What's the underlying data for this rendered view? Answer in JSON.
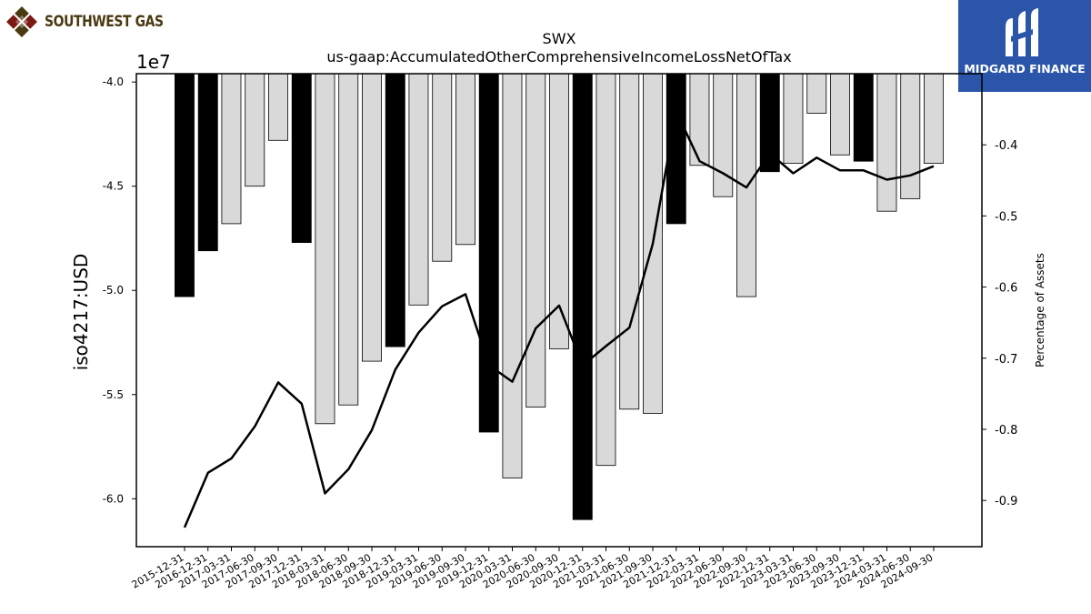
{
  "logos": {
    "left_text": "SOUTHWEST GAS",
    "right_text": "MIDGARD FINANCE",
    "left_icon": "diamond-grid-icon",
    "right_icon": "midgard-m-icon",
    "right_bg_color": "#2a55a8",
    "left_colors": [
      "#7a1a12",
      "#4a3a12"
    ]
  },
  "chart_data": {
    "type": "bar",
    "title": "SWX",
    "subtitle": "us-gaap:AccumulatedOtherComprehensiveIncomeLossNetOfTax",
    "ylabel": "iso4217:USD",
    "y_offset_label": "1e7",
    "y2label": "Percentage of Assets",
    "ylim": [
      -6.23,
      -3.96
    ],
    "y2lim": [
      -0.965,
      -0.3
    ],
    "yticks": [
      "-4.0",
      "-4.5",
      "-5.0",
      "-5.5",
      "-6.0"
    ],
    "y2ticks": [
      "-0.4",
      "-0.5",
      "-0.6",
      "-0.7",
      "-0.8",
      "-0.9"
    ],
    "grid": false,
    "categories": [
      "2015-12-31",
      "2016-12-31",
      "2017-03-31",
      "2017-06-30",
      "2017-09-30",
      "2017-12-31",
      "2018-03-31",
      "2018-06-30",
      "2018-09-30",
      "2018-12-31",
      "2019-03-31",
      "2019-06-30",
      "2019-09-30",
      "2019-12-31",
      "2020-03-31",
      "2020-06-30",
      "2020-09-30",
      "2020-12-31",
      "2021-03-31",
      "2021-06-30",
      "2021-09-30",
      "2021-12-31",
      "2022-03-31",
      "2022-06-30",
      "2022-09-30",
      "2022-12-31",
      "2023-03-31",
      "2023-06-30",
      "2023-09-30",
      "2023-12-31",
      "2024-03-31",
      "2024-06-30",
      "2024-09-30"
    ],
    "series": [
      {
        "kind": "bar",
        "values": [
          -5.03,
          -4.81,
          -4.68,
          -4.5,
          -4.28,
          -4.77,
          -5.64,
          -5.55,
          -5.34,
          -5.27,
          -5.07,
          -4.86,
          -4.78,
          -5.68,
          -5.9,
          -5.56,
          -5.28,
          -6.1,
          -5.84,
          -5.57,
          -5.59,
          -4.68,
          -4.4,
          -4.55,
          -5.03,
          -4.43,
          -4.39,
          -4.15,
          -4.35,
          -4.38,
          -4.62,
          -4.56,
          -4.39
        ],
        "annual": [
          true,
          true,
          false,
          false,
          false,
          true,
          false,
          false,
          false,
          true,
          false,
          false,
          false,
          true,
          false,
          false,
          false,
          true,
          false,
          false,
          false,
          true,
          false,
          false,
          false,
          true,
          false,
          false,
          false,
          true,
          false,
          false,
          false
        ],
        "colors": {
          "annual": "#000000",
          "quarterly": "#d9d9d9"
        }
      },
      {
        "kind": "line",
        "axis": "right",
        "values": [
          -0.938,
          -0.861,
          -0.841,
          -0.796,
          -0.734,
          -0.764,
          -0.89,
          -0.856,
          -0.801,
          -0.716,
          -0.664,
          -0.627,
          -0.61,
          -0.71,
          -0.733,
          -0.658,
          -0.626,
          -0.71,
          -0.683,
          -0.657,
          -0.539,
          -0.353,
          -0.423,
          -0.44,
          -0.46,
          -0.412,
          -0.44,
          -0.418,
          -0.436,
          -0.436,
          -0.449,
          -0.443,
          -0.43
        ],
        "color": "#000000"
      }
    ]
  }
}
